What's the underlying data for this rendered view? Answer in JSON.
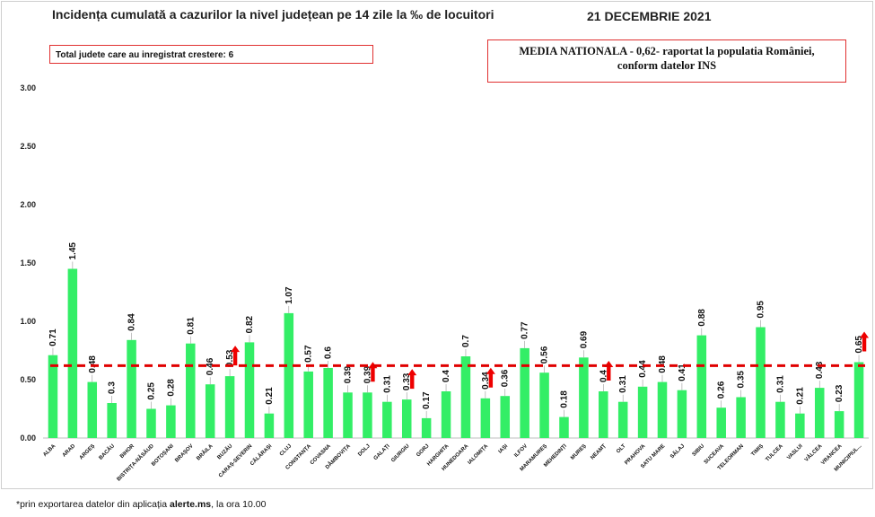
{
  "header": {
    "title": "Incidența cumulată a cazurilor la nivel județean pe 14 zile la ‰ de locuitori",
    "date": "21 DECEMBRIE 2021"
  },
  "info_box": {
    "text": "Total judete care au inregistrat crestere: 6"
  },
  "national_box": {
    "line1": "MEDIA NATIONALA - 0,62-  raportat la populatia României,",
    "line2": "conform datelor INS"
  },
  "footnote": {
    "prefix": "*prin exportarea datelor din aplicația ",
    "bold": "alerte.ms",
    "suffix": ", la ora 10.00"
  },
  "colors": {
    "bar": "#33ee66",
    "average_line": "#e00000",
    "arrow": "#ee0000"
  },
  "chart_data": {
    "type": "bar",
    "categories": [
      "ALBA",
      "ARAD",
      "ARGEȘ",
      "BACĂU",
      "BIHOR",
      "BISTRIȚA-NĂSĂUD",
      "BOTOȘANI",
      "BRAȘOV",
      "BRĂILA",
      "BUZĂU",
      "CARAȘ-SEVERIN",
      "CĂLĂRAȘI",
      "CLUJ",
      "CONSTANȚA",
      "COVASNA",
      "DÂMBOVIȚA",
      "DOLJ",
      "GALAȚI",
      "GIURGIU",
      "GORJ",
      "HARGHITA",
      "HUNEDOARA",
      "IALOMIȚA",
      "IAȘI",
      "ILFOV",
      "MARAMUREȘ",
      "MEHEDINȚI",
      "MUREȘ",
      "NEAMȚ",
      "OLT",
      "PRAHOVA",
      "SATU MARE",
      "SĂLAJ",
      "SIBIU",
      "SUCEAVA",
      "TELEORMAN",
      "TIMIȘ",
      "TULCEA",
      "VASLUI",
      "VÂLCEA",
      "VRANCEA",
      "MUNICIPIUL..."
    ],
    "values": [
      0.71,
      1.45,
      0.48,
      0.3,
      0.84,
      0.25,
      0.28,
      0.81,
      0.46,
      0.53,
      0.82,
      0.21,
      1.07,
      0.57,
      0.6,
      0.39,
      0.39,
      0.31,
      0.33,
      0.17,
      0.4,
      0.7,
      0.34,
      0.36,
      0.77,
      0.56,
      0.18,
      0.69,
      0.4,
      0.31,
      0.44,
      0.48,
      0.41,
      0.88,
      0.26,
      0.35,
      0.95,
      0.31,
      0.21,
      0.43,
      0.23,
      0.65
    ],
    "increase_arrows": [
      "BUZĂU",
      "DOLJ",
      "GIURGIU",
      "IALOMIȚA",
      "NEAMȚ",
      "MUNICIPIUL..."
    ],
    "average": 0.62,
    "yticks": [
      "0.00",
      "0.50",
      "1.00",
      "1.50",
      "2.00",
      "2.50",
      "3.00"
    ],
    "ylim": [
      0,
      3
    ],
    "title": "",
    "xlabel": "",
    "ylabel": "",
    "grid": false
  }
}
